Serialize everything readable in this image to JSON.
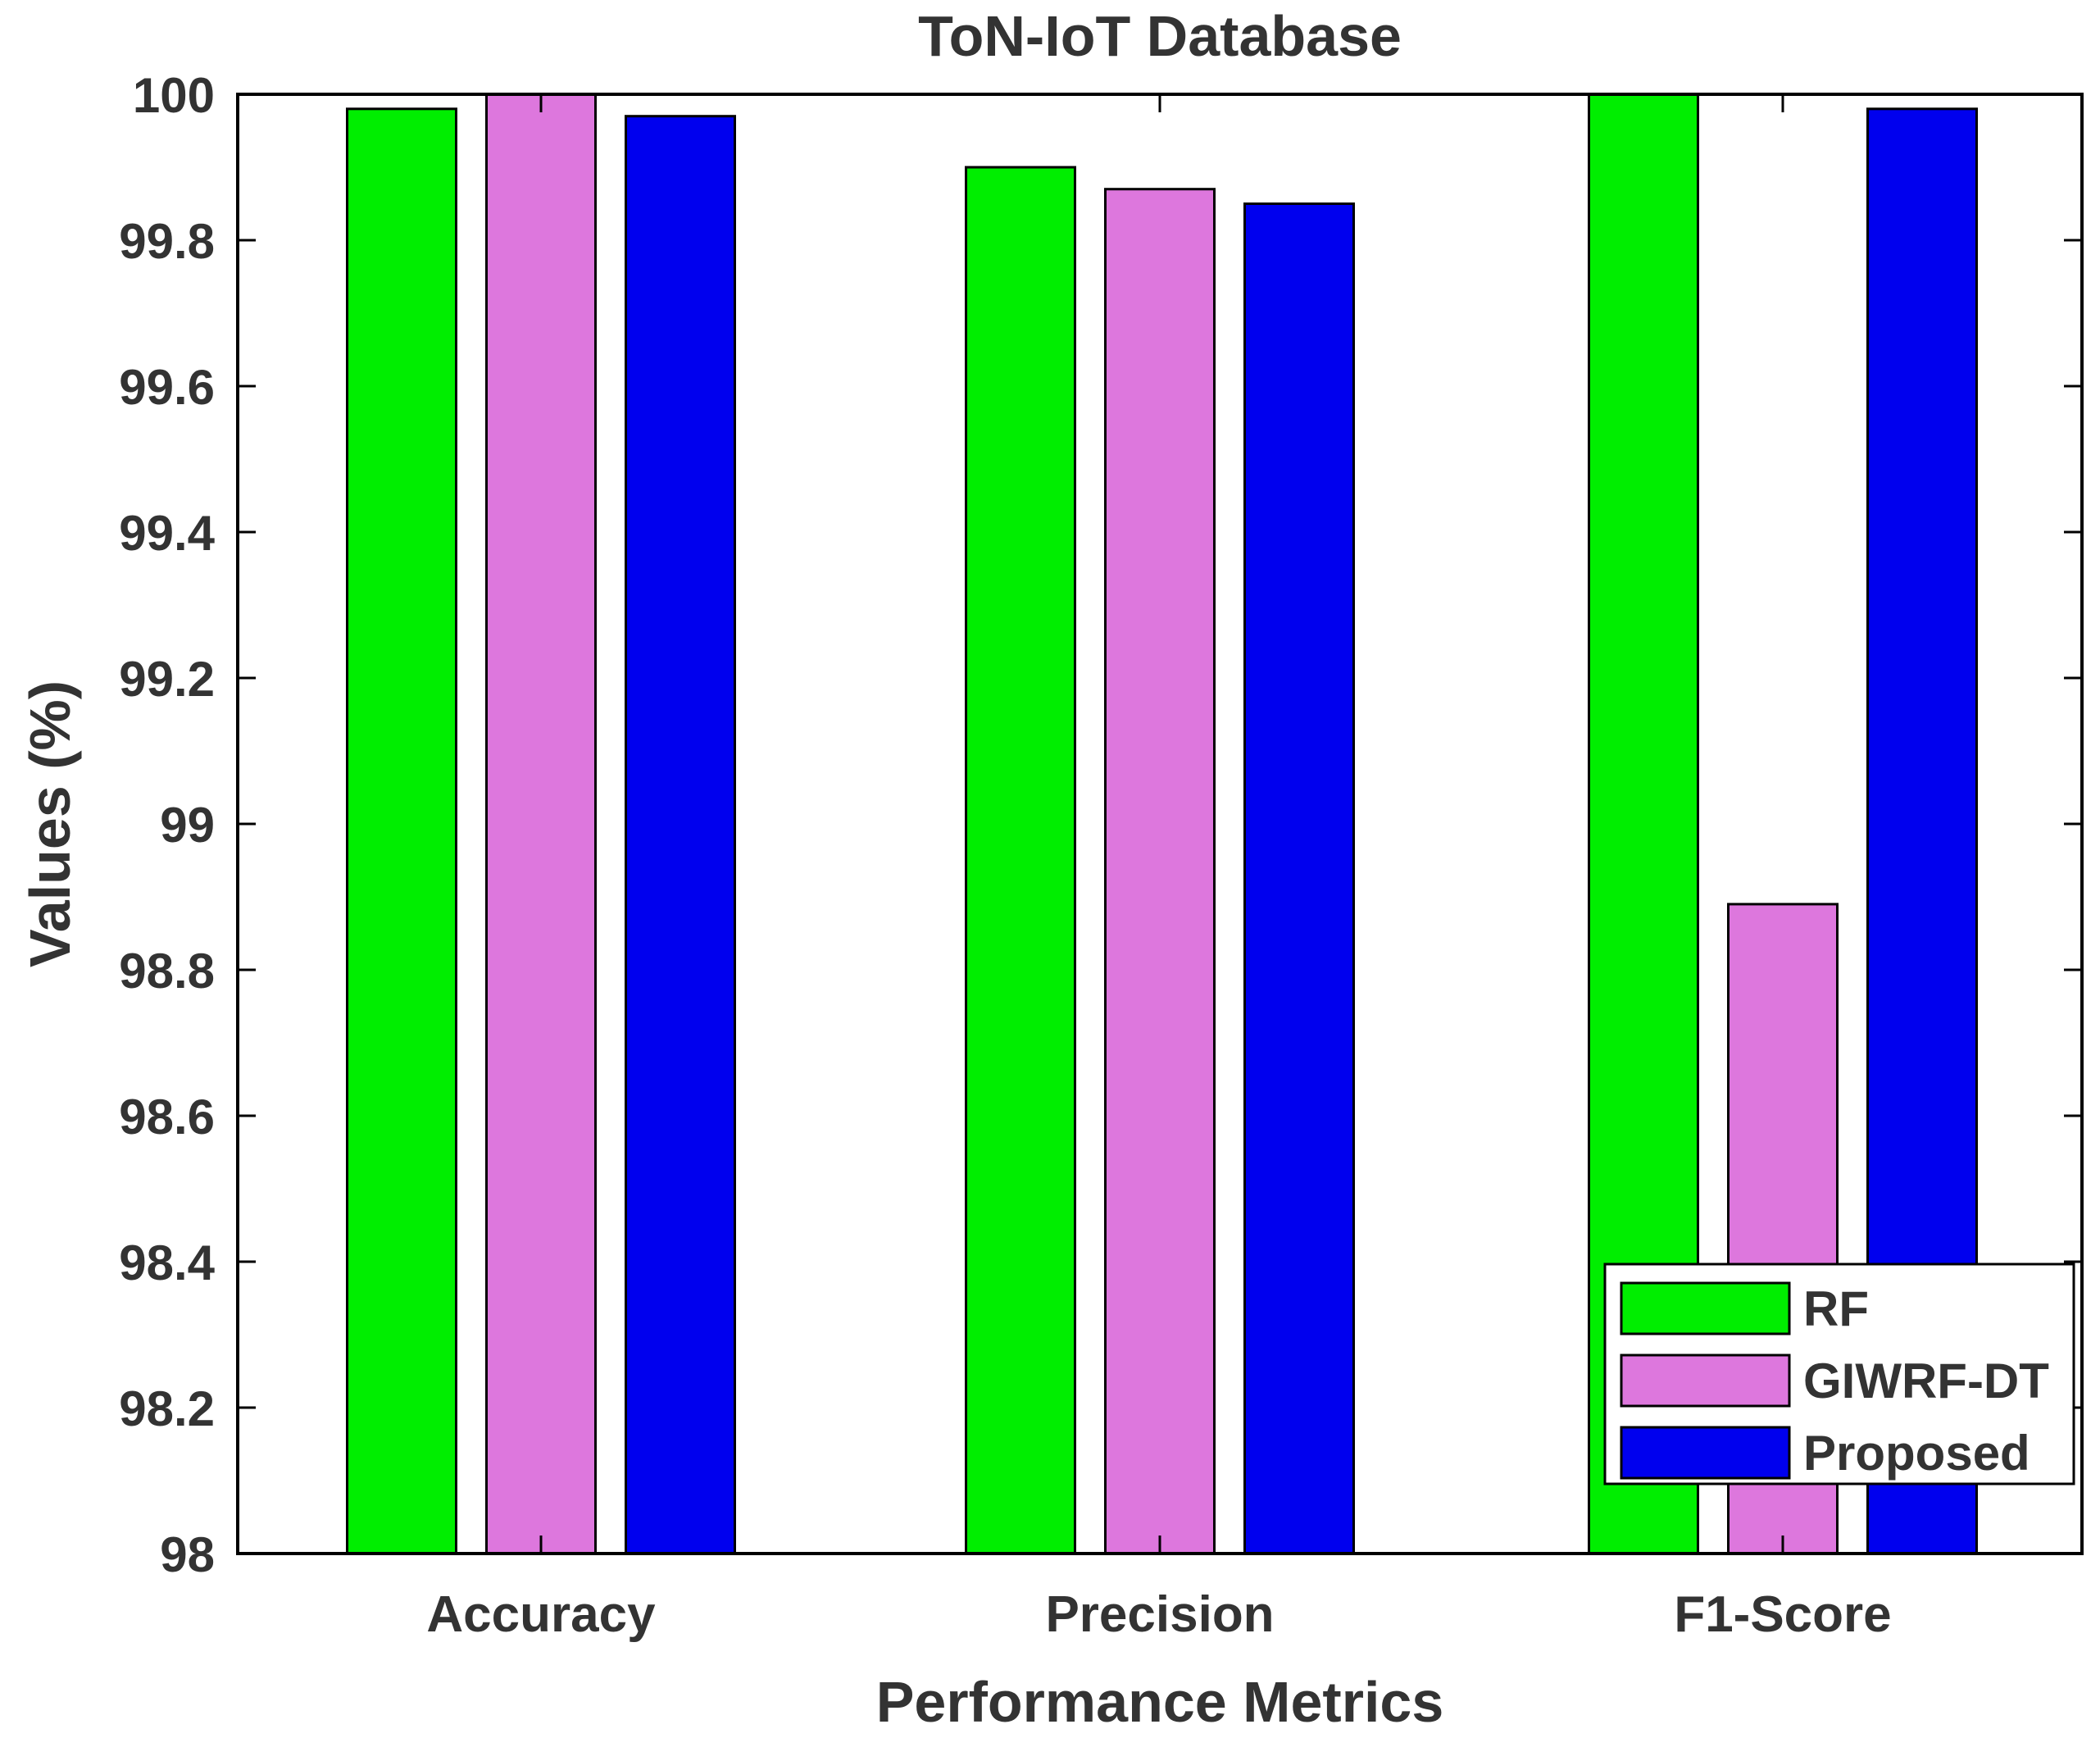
{
  "chart_data": {
    "type": "bar",
    "title": "ToN-IoT Database",
    "xlabel": "Performance Metrics",
    "ylabel": "Values (%)",
    "ylim": [
      98,
      100
    ],
    "yticks": [
      "98",
      "98.2",
      "98.4",
      "98.6",
      "98.8",
      "99",
      "99.2",
      "99.4",
      "99.6",
      "99.8",
      "100"
    ],
    "categories": [
      "Accuracy",
      "Precision",
      "F1-Score"
    ],
    "series": [
      {
        "name": "RF",
        "color": "#00ee00",
        "values": [
          99.98,
          99.9,
          100.0
        ]
      },
      {
        "name": "GIWRF-DT",
        "color": "#dd77dd",
        "values": [
          100.0,
          99.87,
          98.89
        ]
      },
      {
        "name": "Proposed",
        "color": "#0000ee",
        "values": [
          99.97,
          99.85,
          99.98
        ]
      }
    ],
    "legend_position": "bottom-right",
    "grid": false
  }
}
